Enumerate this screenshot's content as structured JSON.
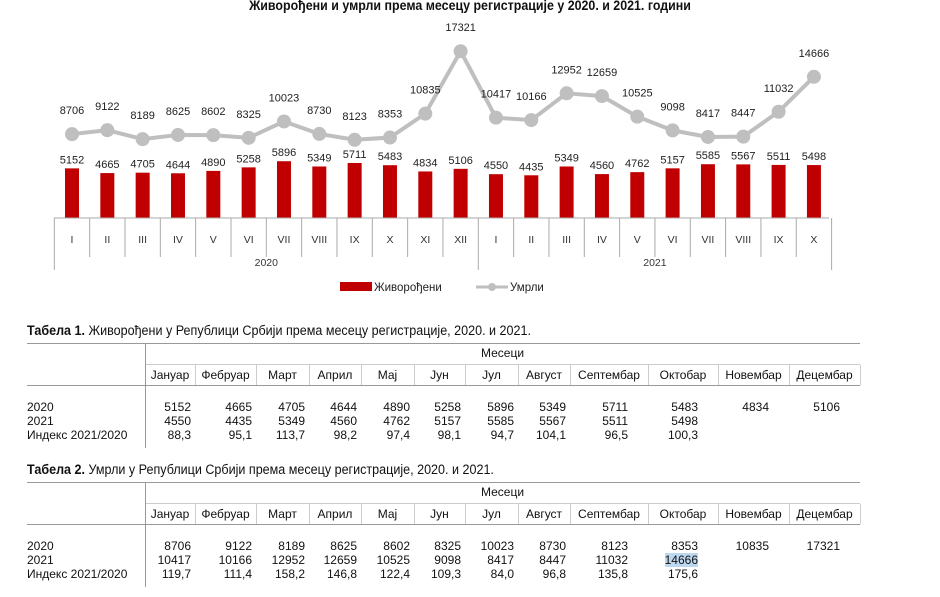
{
  "chart_data": {
    "type": "bar+line",
    "title": "Живорођени и умрли према месецу регистрације у 2020.  и 2021. години",
    "categories": [
      "I",
      "II",
      "III",
      "IV",
      "V",
      "VI",
      "VII",
      "VIII",
      "IX",
      "X",
      "XI",
      "XII",
      "I",
      "II",
      "III",
      "IV",
      "V",
      "VI",
      "VII",
      "VIII",
      "IX",
      "X"
    ],
    "groups": [
      {
        "label": "2020",
        "count": 12
      },
      {
        "label": "2021",
        "count": 10
      }
    ],
    "series": [
      {
        "name": "Живорођени",
        "type": "bar",
        "color": "#c00000",
        "values": [
          5152,
          4665,
          4705,
          4644,
          4890,
          5258,
          5896,
          5349,
          5711,
          5483,
          4834,
          5106,
          4550,
          4435,
          5349,
          4560,
          4762,
          5157,
          5585,
          5567,
          5511,
          5498
        ]
      },
      {
        "name": "Умрли",
        "type": "line",
        "color": "#bfbfbf",
        "values": [
          8706,
          9122,
          8189,
          8625,
          8602,
          8325,
          10023,
          8730,
          8123,
          8353,
          10835,
          17321,
          10417,
          10166,
          12952,
          12659,
          10525,
          9098,
          8417,
          8447,
          11032,
          14666
        ]
      }
    ],
    "legend": "bottom",
    "grid": false,
    "data_labels": true
  },
  "tables": [
    {
      "label": "Табела 1.",
      "title": " Живорођени у Републици Србији према месецу регистрације, 2020. и 2021.",
      "group_header": "Месеци",
      "columns": [
        "Јануар",
        "Фебруар",
        "Март",
        "Април",
        "Мај",
        "Јун",
        "Јул",
        "Август",
        "Септембар",
        "Октобар",
        "Новембар",
        "Децембар"
      ],
      "rows": [
        {
          "label": "2020",
          "values": [
            "5152",
            "4665",
            "4705",
            "4644",
            "4890",
            "5258",
            "5896",
            "5349",
            "5711",
            "5483",
            "4834",
            "5106"
          ]
        },
        {
          "label": "2021",
          "values": [
            "4550",
            "4435",
            "5349",
            "4560",
            "4762",
            "5157",
            "5585",
            "5567",
            "5511",
            "5498",
            "",
            ""
          ]
        },
        {
          "label": "Индекс 2021/2020",
          "values": [
            "88,3",
            "95,1",
            "113,7",
            "98,2",
            "97,4",
            "98,1",
            "94,7",
            "104,1",
            "96,5",
            "100,3",
            "",
            ""
          ]
        }
      ]
    },
    {
      "label": "Табела 2.",
      "title": " Умрли у Републици Србији према месецу регистрације, 2020. и 2021.",
      "group_header": "Месеци",
      "columns": [
        "Јануар",
        "Фебруар",
        "Март",
        "Април",
        "Мај",
        "Јун",
        "Јул",
        "Август",
        "Септембар",
        "Октобар",
        "Новембар",
        "Децембар"
      ],
      "rows": [
        {
          "label": "2020",
          "values": [
            "8706",
            "9122",
            "8189",
            "8625",
            "8602",
            "8325",
            "10023",
            "8730",
            "8123",
            "8353",
            "10835",
            "17321"
          ]
        },
        {
          "label": "2021",
          "values": [
            "10417",
            "10166",
            "12952",
            "12659",
            "10525",
            "9098",
            "8417",
            "8447",
            "11032",
            "14666",
            "",
            ""
          ]
        },
        {
          "label": "Индекс 2021/2020",
          "values": [
            "119,7",
            "111,4",
            "158,2",
            "146,8",
            "122,4",
            "109,3",
            "84,0",
            "96,8",
            "135,8",
            "175,6",
            "",
            ""
          ]
        }
      ],
      "highlighted_cell": {
        "row": 1,
        "col": 9
      }
    }
  ]
}
